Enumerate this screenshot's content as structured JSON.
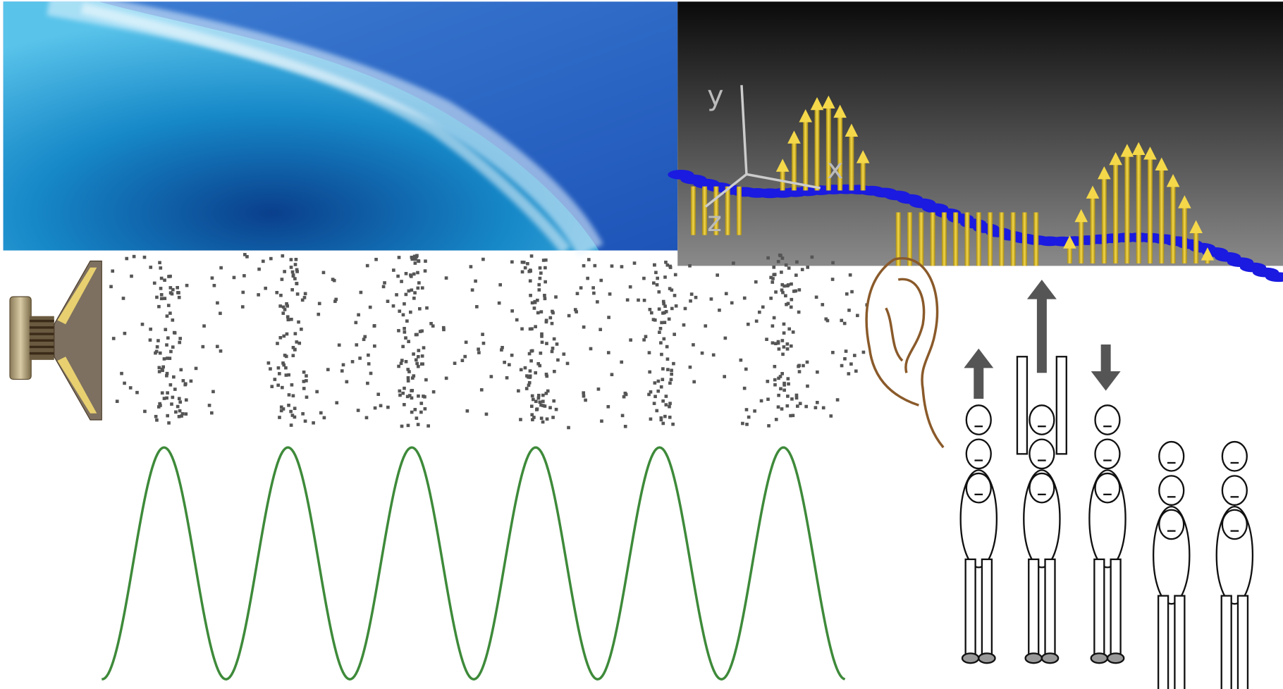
{
  "axis_labels": {
    "y": "y",
    "x": "x",
    "z": "z"
  }
}
